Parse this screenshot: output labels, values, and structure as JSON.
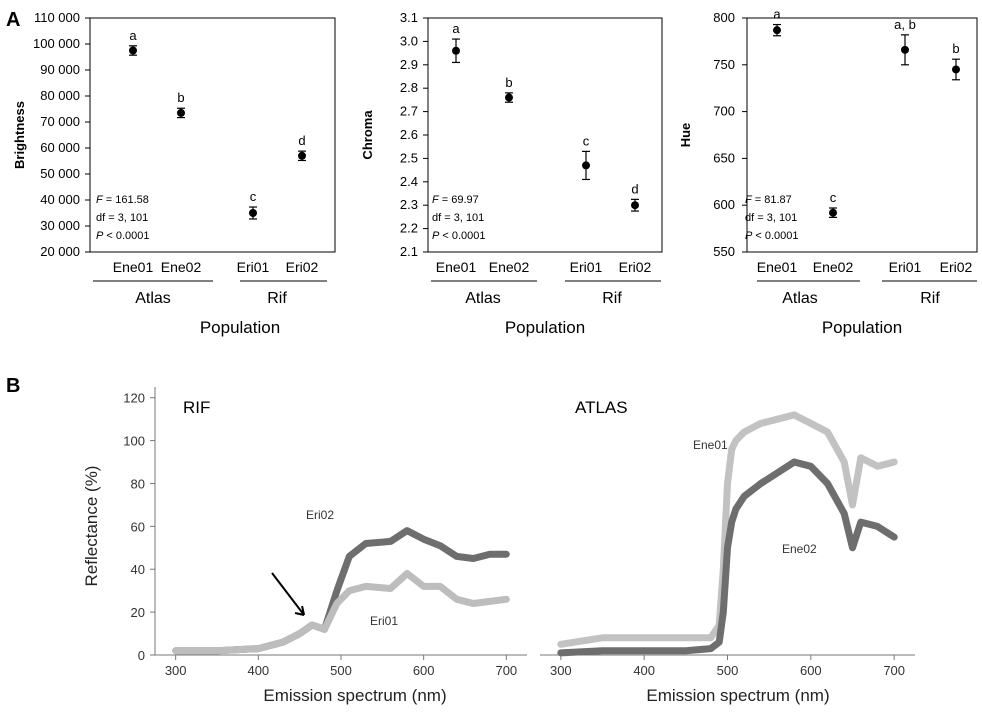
{
  "panel_labels": {
    "a": "A",
    "b": "B"
  },
  "panel_a": {
    "population_label": "Population",
    "groups": [
      {
        "name": "Atlas",
        "pops": [
          "Ene01",
          "Ene02"
        ]
      },
      {
        "name": "Rif",
        "pops": [
          "Eri01",
          "Eri02"
        ]
      }
    ]
  },
  "panel_b": {
    "arrow_target": {
      "x": 465,
      "y": 14
    }
  },
  "colors": {
    "marker": "#000000",
    "eri02": "#6e6e6e",
    "eri01": "#bdbdbd",
    "ene01": "#c2c2c2",
    "ene02": "#6e6e6e"
  },
  "chart_data": [
    {
      "type": "scatter",
      "ylabel": "Brightness",
      "xlabel": "Population",
      "categories": [
        "Ene01",
        "Ene02",
        "Eri01",
        "Eri02"
      ],
      "groups": [
        "Atlas",
        "Rif"
      ],
      "y_ticks": [
        "20 000",
        "30 000",
        "40 000",
        "50 000",
        "60 000",
        "70 000",
        "80 000",
        "90 000",
        "100 000",
        "110 000"
      ],
      "ylim": [
        20000,
        110000
      ],
      "values": [
        97500,
        73500,
        35000,
        57000
      ],
      "err": [
        1800,
        1800,
        2300,
        1800
      ],
      "letters": [
        "a",
        "b",
        "c",
        "d"
      ],
      "stats": {
        "F": "= 161.58",
        "df": "df = 3, 101",
        "P": "< 0.0001"
      }
    },
    {
      "type": "scatter",
      "ylabel": "Chroma",
      "xlabel": "Population",
      "categories": [
        "Ene01",
        "Ene02",
        "Eri01",
        "Eri02"
      ],
      "groups": [
        "Atlas",
        "Rif"
      ],
      "y_ticks": [
        "2.1",
        "2.2",
        "2.3",
        "2.4",
        "2.5",
        "2.6",
        "2.7",
        "2.8",
        "2.9",
        "3.0",
        "3.1"
      ],
      "ylim": [
        2.1,
        3.1
      ],
      "values": [
        2.96,
        2.76,
        2.47,
        2.3
      ],
      "err": [
        0.05,
        0.02,
        0.06,
        0.025
      ],
      "letters": [
        "a",
        "b",
        "c",
        "d"
      ],
      "stats": {
        "F": "= 69.97",
        "df": "df = 3, 101",
        "P": "< 0.0001"
      }
    },
    {
      "type": "scatter",
      "ylabel": "Hue",
      "xlabel": "Population",
      "categories": [
        "Ene01",
        "Ene02",
        "Eri01",
        "Eri02"
      ],
      "groups": [
        "Atlas",
        "Rif"
      ],
      "y_ticks": [
        "550",
        "600",
        "650",
        "700",
        "750",
        "800"
      ],
      "ylim": [
        550,
        800
      ],
      "values": [
        787,
        592,
        766,
        745
      ],
      "err": [
        6,
        5,
        16,
        11
      ],
      "letters": [
        "a",
        "c",
        "a, b",
        "b"
      ],
      "stats": {
        "F": "= 81.87",
        "df": "df = 3, 101",
        "P": "< 0.0001"
      }
    },
    {
      "type": "line",
      "title": "RIF",
      "xlabel": "Emission spectrum (nm)",
      "ylabel": "Reflectance (%)",
      "xlim": [
        275,
        725
      ],
      "ylim": [
        0,
        125
      ],
      "x_ticks": [
        300,
        400,
        500,
        600,
        700
      ],
      "y_ticks": [
        0,
        20,
        40,
        60,
        80,
        100,
        120
      ],
      "series": [
        {
          "name": "Eri02",
          "x": [
            300,
            350,
            400,
            430,
            450,
            465,
            480,
            495,
            510,
            530,
            560,
            580,
            600,
            620,
            640,
            660,
            680,
            700
          ],
          "y": [
            2,
            2,
            3,
            6,
            10,
            14,
            12,
            30,
            46,
            52,
            53,
            58,
            54,
            51,
            46,
            45,
            47,
            47
          ]
        },
        {
          "name": "Eri01",
          "x": [
            300,
            350,
            400,
            430,
            450,
            465,
            480,
            495,
            510,
            530,
            560,
            580,
            600,
            620,
            640,
            660,
            680,
            700
          ],
          "y": [
            2,
            2,
            3,
            6,
            10,
            14,
            12,
            24,
            30,
            32,
            31,
            38,
            32,
            32,
            26,
            24,
            25,
            26
          ]
        }
      ]
    },
    {
      "type": "line",
      "title": "ATLAS",
      "xlabel": "Emission spectrum (nm)",
      "xlim": [
        275,
        725
      ],
      "ylim": [
        0,
        125
      ],
      "x_ticks": [
        300,
        400,
        500,
        600,
        700
      ],
      "series": [
        {
          "name": "Ene01",
          "x": [
            300,
            350,
            400,
            450,
            480,
            490,
            495,
            500,
            505,
            510,
            520,
            540,
            560,
            580,
            600,
            620,
            640,
            650,
            660,
            680,
            700
          ],
          "y": [
            5,
            8,
            8,
            8,
            8,
            14,
            40,
            80,
            96,
            100,
            104,
            108,
            110,
            112,
            108,
            104,
            90,
            70,
            92,
            88,
            90
          ]
        },
        {
          "name": "Ene02",
          "x": [
            300,
            350,
            400,
            450,
            480,
            490,
            495,
            500,
            505,
            510,
            520,
            540,
            560,
            580,
            600,
            620,
            640,
            650,
            660,
            680,
            700
          ],
          "y": [
            1,
            2,
            2,
            2,
            3,
            6,
            20,
            50,
            62,
            68,
            74,
            80,
            85,
            90,
            88,
            80,
            66,
            50,
            62,
            60,
            55
          ]
        }
      ]
    }
  ]
}
